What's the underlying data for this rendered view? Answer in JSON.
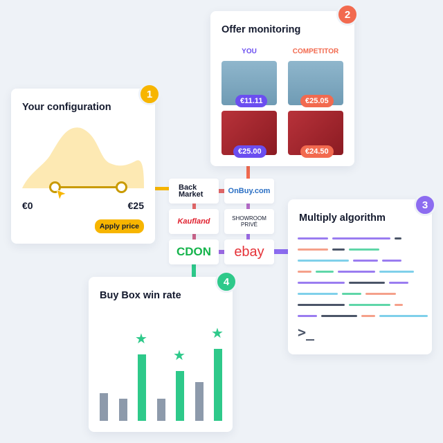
{
  "colors": {
    "yellow": "#f7b500",
    "orange": "#f26a4f",
    "purple": "#7c5cf0",
    "green": "#2ec98a",
    "gray": "#8d9aab",
    "red": "#e06767"
  },
  "config": {
    "badge": "1",
    "title": "Your configuration",
    "min_label": "€0",
    "max_label": "€25",
    "apply_label": "Apply price"
  },
  "offers": {
    "badge": "2",
    "title": "Offer monitoring",
    "you_label": "YOU",
    "competitor_label": "COMPETITOR",
    "items": [
      {
        "product": "stool",
        "you": "€11.11",
        "competitor": "€25.05"
      },
      {
        "product": "cosmetics",
        "you": "€25.00",
        "competitor": "€24.50"
      }
    ]
  },
  "algorithm": {
    "badge": "3",
    "title": "Multiply algorithm",
    "prompt": ">_"
  },
  "buybox": {
    "badge": "4",
    "title": "Buy Box win rate",
    "bars": [
      {
        "value": 40,
        "win": false
      },
      {
        "value": 32,
        "win": false
      },
      {
        "value": 96,
        "win": true
      },
      {
        "value": 32,
        "win": false
      },
      {
        "value": 72,
        "win": true
      },
      {
        "value": 56,
        "win": false
      },
      {
        "value": 104,
        "win": true
      }
    ]
  },
  "marketplaces": [
    "Back Market",
    "OnBuy.com",
    "Kaufland",
    "SHOWROOM PRIVÉ",
    "CDON",
    "ebay"
  ]
}
